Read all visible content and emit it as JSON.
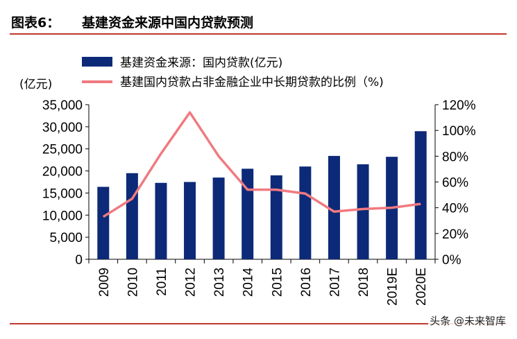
{
  "header": {
    "figure_label": "图表6：",
    "figure_title": "基建资金来源中国内贷款预测"
  },
  "colors": {
    "bar": "#0d2a78",
    "line": "#f07a80",
    "accent_rule": "#c0392b"
  },
  "watermark": "头条 @未来智库",
  "chart_data": {
    "type": "bar",
    "categories": [
      "2009",
      "2010",
      "2011",
      "2012",
      "2013",
      "2014",
      "2015",
      "2016",
      "2017",
      "2018",
      "2019E",
      "2020E"
    ],
    "series": [
      {
        "name": "基建资金来源：国内贷款(亿元)",
        "type": "bar",
        "axis": "left",
        "values": [
          16400,
          19500,
          17300,
          17500,
          18500,
          20500,
          19000,
          21000,
          23400,
          21500,
          23200,
          29000
        ]
      },
      {
        "name": "基建国内贷款占非金融企业中长期贷款的比例（%)",
        "type": "line",
        "axis": "right",
        "values": [
          33,
          47,
          82,
          114,
          80,
          54,
          54,
          51,
          37,
          39,
          40,
          43
        ]
      }
    ],
    "left_axis": {
      "unit": "(亿元)",
      "ylim": [
        0,
        35000
      ],
      "ticks": [
        0,
        5000,
        10000,
        15000,
        20000,
        25000,
        30000,
        35000
      ],
      "tick_labels": [
        "0",
        "5,000",
        "10,000",
        "15,000",
        "20,000",
        "25,000",
        "30,000",
        "35,000"
      ]
    },
    "right_axis": {
      "ylim": [
        0,
        120
      ],
      "ticks": [
        0,
        20,
        40,
        60,
        80,
        100,
        120
      ],
      "tick_labels": [
        "0%",
        "20%",
        "40%",
        "60%",
        "80%",
        "100%",
        "120%"
      ]
    },
    "grid": false,
    "legend": "top-left"
  }
}
